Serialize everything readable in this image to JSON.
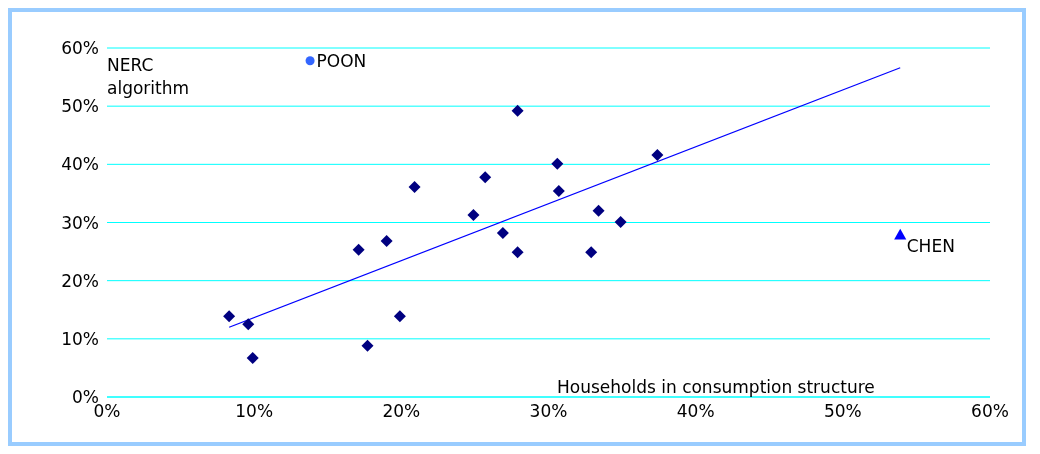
{
  "chart_data": {
    "type": "scatter",
    "xlabel": "Households in consumption structure",
    "ylabel": "NERC algorithm",
    "xlim": [
      0,
      60
    ],
    "ylim": [
      0,
      60
    ],
    "xticks": [
      {
        "value": 0,
        "label": "0%"
      },
      {
        "value": 10,
        "label": "10%"
      },
      {
        "value": 20,
        "label": "20%"
      },
      {
        "value": 30,
        "label": "30%"
      },
      {
        "value": 40,
        "label": "40%"
      },
      {
        "value": 50,
        "label": "50%"
      },
      {
        "value": 60,
        "label": "60%"
      }
    ],
    "yticks": [
      {
        "value": 0,
        "label": "0%"
      },
      {
        "value": 10,
        "label": "10%"
      },
      {
        "value": 20,
        "label": "20%"
      },
      {
        "value": 30,
        "label": "30%"
      },
      {
        "value": 40,
        "label": "40%"
      },
      {
        "value": 50,
        "label": "50%"
      },
      {
        "value": 60,
        "label": "60%"
      }
    ],
    "grid": "y",
    "series": [
      {
        "marker": "diamond",
        "color": "#000080",
        "x": [
          8.3,
          9.6,
          9.9,
          17.1,
          17.7,
          19.0,
          19.9,
          20.9,
          24.9,
          25.7,
          26.9,
          27.9,
          27.9,
          30.6,
          30.7,
          32.9,
          33.4,
          34.9,
          37.4
        ],
        "values": [
          13.9,
          12.5,
          6.7,
          25.3,
          8.8,
          26.8,
          13.9,
          36.1,
          31.3,
          37.8,
          28.2,
          49.2,
          24.9,
          40.1,
          35.4,
          24.9,
          32.0,
          30.1,
          41.6
        ]
      },
      {
        "marker": "circle",
        "name": "POON",
        "color": "#3366ff",
        "x": [
          13.8
        ],
        "values": [
          57.8
        ]
      },
      {
        "marker": "triangle",
        "name": "CHEN",
        "color": "#0000ff",
        "x": [
          53.9
        ],
        "values": [
          27.7
        ]
      },
      {
        "type": "line",
        "marker": "none",
        "line_style": "solid",
        "color": "#0000ff",
        "x": [
          8.3,
          53.9
        ],
        "values": [
          12.0,
          56.6
        ]
      }
    ]
  }
}
